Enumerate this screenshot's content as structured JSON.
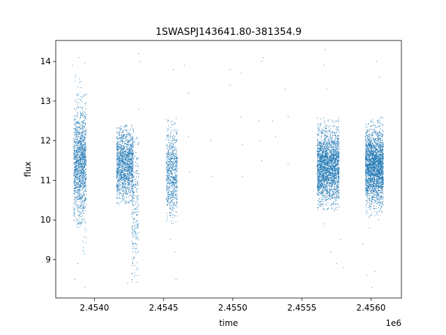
{
  "chart_data": {
    "type": "scatter",
    "title": "1SWASPJ143641.80-381354.9",
    "xlabel": "time",
    "ylabel": "flux",
    "x_offset_label": "1e6",
    "xlim": [
      2.45372,
      2.45622
    ],
    "ylim": [
      8.03,
      14.53
    ],
    "x_ticks": [
      2.454,
      2.4545,
      2.455,
      2.4555,
      2.456
    ],
    "x_tick_labels": [
      "2.4540",
      "2.4545",
      "2.4550",
      "2.4555",
      "2.4560"
    ],
    "y_ticks": [
      9,
      10,
      11,
      12,
      13,
      14
    ],
    "y_tick_labels": [
      "9",
      "10",
      "11",
      "12",
      "13",
      "14"
    ],
    "grid": false,
    "marker_color": "#1f77b4",
    "clusters": [
      {
        "x_range": [
          2.45385,
          2.45391
        ],
        "y_center": 11.4,
        "y_spread": 0.7,
        "n": 900,
        "y_min": 9.8,
        "y_max": 13.8
      },
      {
        "x_range": [
          2.45391,
          2.45394
        ],
        "y_center": 11.5,
        "y_spread": 0.7,
        "n": 500,
        "y_min": 8.4,
        "y_max": 14.1
      },
      {
        "x_range": [
          2.45416,
          2.45428
        ],
        "y_center": 11.4,
        "y_spread": 0.45,
        "n": 1400,
        "y_min": 10.4,
        "y_max": 12.4
      },
      {
        "x_range": [
          2.45427,
          2.45432
        ],
        "y_center": 10.4,
        "y_spread": 0.9,
        "n": 250,
        "y_min": 8.4,
        "y_max": 12.3
      },
      {
        "x_range": [
          2.45452,
          2.4546
        ],
        "y_center": 11.2,
        "y_spread": 0.55,
        "n": 700,
        "y_min": 9.9,
        "y_max": 12.7
      },
      {
        "x_range": [
          2.45561,
          2.45577
        ],
        "y_center": 11.35,
        "y_spread": 0.45,
        "n": 2400,
        "y_min": 10.2,
        "y_max": 12.6
      },
      {
        "x_range": [
          2.45596,
          2.45609
        ],
        "y_center": 11.35,
        "y_spread": 0.45,
        "n": 2400,
        "y_min": 10.0,
        "y_max": 12.6
      }
    ],
    "outliers": [
      [
        2.45386,
        8.5
      ],
      [
        2.45388,
        8.9
      ],
      [
        2.45392,
        9.2
      ],
      [
        2.45393,
        8.3
      ],
      [
        2.45389,
        14.1
      ],
      [
        2.45384,
        13.9
      ],
      [
        2.45424,
        8.4
      ],
      [
        2.4543,
        8.6
      ],
      [
        2.45431,
        8.8
      ],
      [
        2.4543,
        9.3
      ],
      [
        2.45432,
        14.2
      ],
      [
        2.45433,
        14.0
      ],
      [
        2.45432,
        12.8
      ],
      [
        2.45455,
        9.5
      ],
      [
        2.45458,
        9.2
      ],
      [
        2.45459,
        8.5
      ],
      [
        2.45457,
        13.8
      ],
      [
        2.4546,
        10.1
      ],
      [
        2.45465,
        13.9
      ],
      [
        2.45468,
        13.2
      ],
      [
        2.45468,
        12.1
      ],
      [
        2.45469,
        11.2
      ],
      [
        2.45484,
        12.0
      ],
      [
        2.45485,
        11.1
      ],
      [
        2.45498,
        13.8
      ],
      [
        2.45498,
        13.4
      ],
      [
        2.45506,
        13.7
      ],
      [
        2.45506,
        12.6
      ],
      [
        2.45507,
        11.9
      ],
      [
        2.45507,
        11.1
      ],
      [
        2.45521,
        14.0
      ],
      [
        2.45522,
        14.1
      ],
      [
        2.4552,
        12.0
      ],
      [
        2.45521,
        11.5
      ],
      [
        2.45519,
        12.5
      ],
      [
        2.45529,
        12.5
      ],
      [
        2.45531,
        12.1
      ],
      [
        2.45538,
        13.3
      ],
      [
        2.4554,
        12.6
      ],
      [
        2.4554,
        11.4
      ],
      [
        2.45567,
        14.3
      ],
      [
        2.45566,
        13.9
      ],
      [
        2.45568,
        13.3
      ],
      [
        2.45566,
        9.9
      ],
      [
        2.45571,
        9.2
      ],
      [
        2.45575,
        8.9
      ],
      [
        2.45578,
        9.5
      ],
      [
        2.4558,
        8.8
      ],
      [
        2.45594,
        9.4
      ],
      [
        2.45597,
        8.6
      ],
      [
        2.45604,
        14.0
      ],
      [
        2.45601,
        8.3
      ],
      [
        2.45606,
        13.6
      ],
      [
        2.45603,
        8.7
      ],
      [
        2.45599,
        9.8
      ]
    ]
  }
}
